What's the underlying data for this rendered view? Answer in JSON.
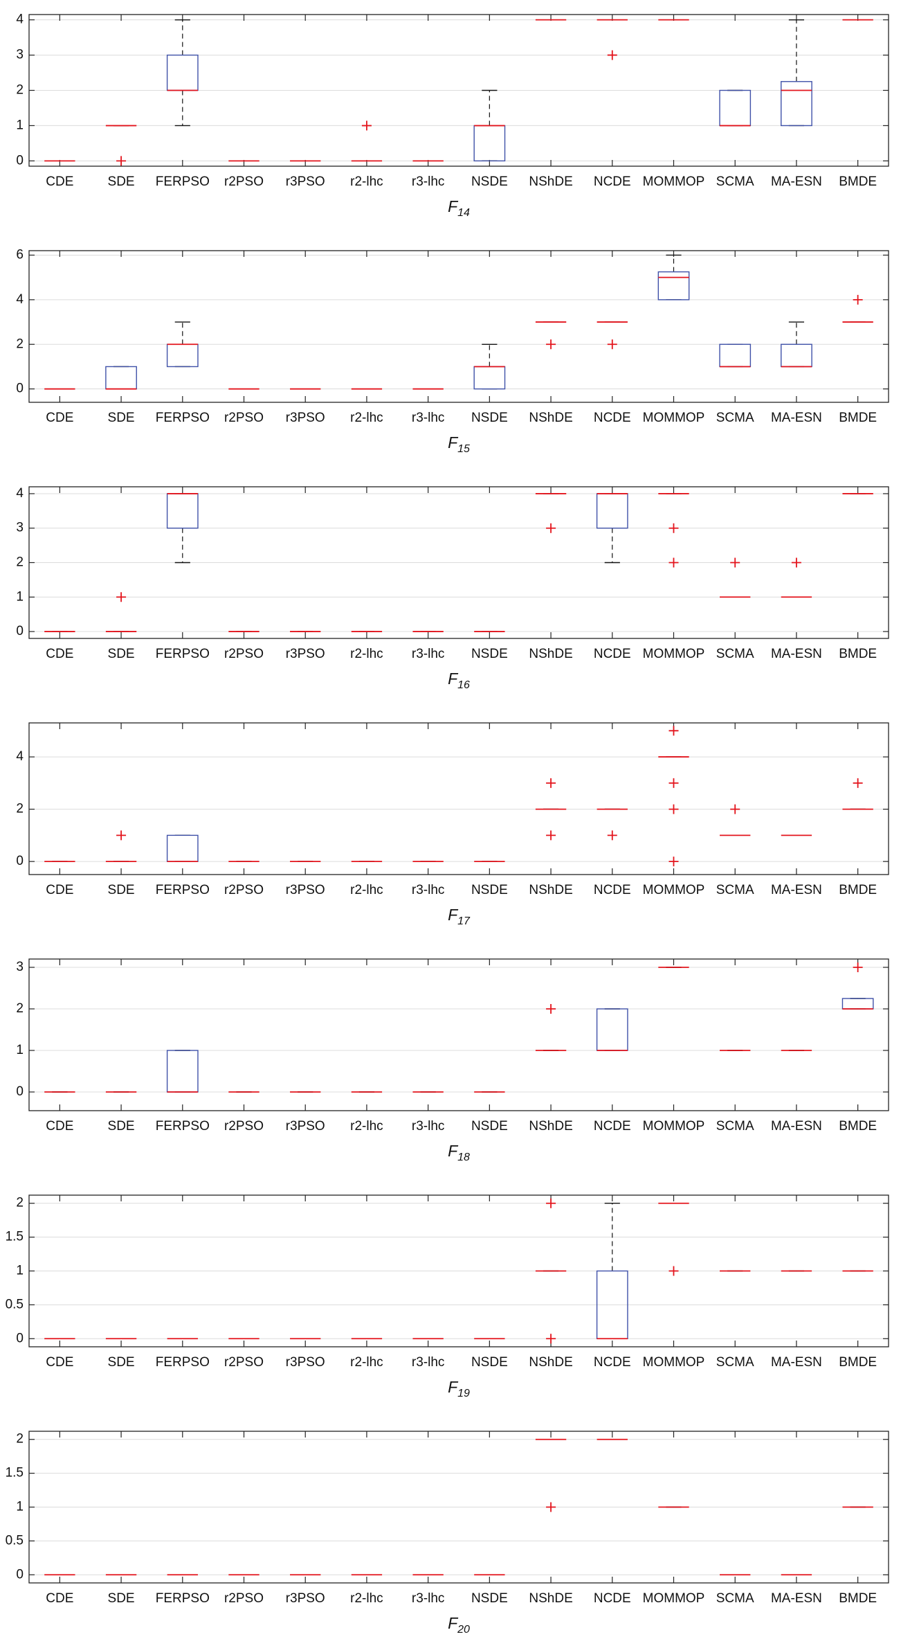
{
  "chart_data": [
    {
      "type": "box",
      "xlabel": "F",
      "xlabel_sub": "14",
      "ylim": [
        -0.15,
        4.15
      ],
      "yticks": [
        0,
        1,
        2,
        3,
        4
      ],
      "grid": true,
      "box_color": "#3f51a8",
      "median_color": "#e3141c",
      "categories": [
        "CDE",
        "SDE",
        "FERPSO",
        "r2PSO",
        "r3PSO",
        "r2-lhc",
        "r3-lhc",
        "NSDE",
        "NShDE",
        "NCDE",
        "MOMMOP",
        "SCMA",
        "MA-ESN",
        "BMDE"
      ],
      "boxes": [
        {
          "lo": 0,
          "q1": 0,
          "med": 0,
          "q3": 0,
          "hi": 0
        },
        {
          "lo": 1,
          "q1": 1,
          "med": 1,
          "q3": 1,
          "hi": 1,
          "out": [
            0
          ]
        },
        {
          "lo": 1,
          "q1": 2,
          "med": 2,
          "q3": 3,
          "hi": 4
        },
        {
          "lo": 0,
          "q1": 0,
          "med": 0,
          "q3": 0,
          "hi": 0
        },
        {
          "lo": 0,
          "q1": 0,
          "med": 0,
          "q3": 0,
          "hi": 0
        },
        {
          "lo": 0,
          "q1": 0,
          "med": 0,
          "q3": 0,
          "hi": 0,
          "out": [
            1
          ]
        },
        {
          "lo": 0,
          "q1": 0,
          "med": 0,
          "q3": 0,
          "hi": 0
        },
        {
          "lo": 0,
          "q1": 0,
          "med": 1,
          "q3": 1,
          "hi": 2
        },
        {
          "lo": 4,
          "q1": 4,
          "med": 4,
          "q3": 4,
          "hi": 4
        },
        {
          "lo": 4,
          "q1": 4,
          "med": 4,
          "q3": 4,
          "hi": 4,
          "out": [
            3
          ]
        },
        {
          "lo": 4,
          "q1": 4,
          "med": 4,
          "q3": 4,
          "hi": 4
        },
        {
          "lo": 1,
          "q1": 1,
          "med": 1,
          "q3": 2,
          "hi": 2
        },
        {
          "lo": 1,
          "q1": 1,
          "med": 2,
          "q3": 2.25,
          "hi": 4
        },
        {
          "lo": 4,
          "q1": 4,
          "med": 4,
          "q3": 4,
          "hi": 4
        }
      ]
    },
    {
      "type": "box",
      "xlabel": "F",
      "xlabel_sub": "15",
      "ylim": [
        -0.6,
        6.2
      ],
      "yticks": [
        0,
        2,
        4,
        6
      ],
      "grid": true,
      "box_color": "#3f51a8",
      "median_color": "#e3141c",
      "categories": [
        "CDE",
        "SDE",
        "FERPSO",
        "r2PSO",
        "r3PSO",
        "r2-lhc",
        "r3-lhc",
        "NSDE",
        "NShDE",
        "NCDE",
        "MOMMOP",
        "SCMA",
        "MA-ESN",
        "BMDE"
      ],
      "boxes": [
        {
          "lo": 0,
          "q1": 0,
          "med": 0,
          "q3": 0,
          "hi": 0
        },
        {
          "lo": 0,
          "q1": 0,
          "med": 0,
          "q3": 1,
          "hi": 1
        },
        {
          "lo": 1,
          "q1": 1,
          "med": 2,
          "q3": 2,
          "hi": 3
        },
        {
          "lo": 0,
          "q1": 0,
          "med": 0,
          "q3": 0,
          "hi": 0
        },
        {
          "lo": 0,
          "q1": 0,
          "med": 0,
          "q3": 0,
          "hi": 0
        },
        {
          "lo": 0,
          "q1": 0,
          "med": 0,
          "q3": 0,
          "hi": 0
        },
        {
          "lo": 0,
          "q1": 0,
          "med": 0,
          "q3": 0,
          "hi": 0
        },
        {
          "lo": 0,
          "q1": 0,
          "med": 1,
          "q3": 1,
          "hi": 2
        },
        {
          "lo": 3,
          "q1": 3,
          "med": 3,
          "q3": 3,
          "hi": 3,
          "out": [
            2
          ]
        },
        {
          "lo": 3,
          "q1": 3,
          "med": 3,
          "q3": 3,
          "hi": 3,
          "out": [
            2
          ]
        },
        {
          "lo": 4,
          "q1": 4,
          "med": 5,
          "q3": 5.25,
          "hi": 6
        },
        {
          "lo": 1,
          "q1": 1,
          "med": 1,
          "q3": 2,
          "hi": 2
        },
        {
          "lo": 1,
          "q1": 1,
          "med": 1,
          "q3": 2,
          "hi": 3
        },
        {
          "lo": 3,
          "q1": 3,
          "med": 3,
          "q3": 3,
          "hi": 3,
          "out": [
            4
          ]
        }
      ]
    },
    {
      "type": "box",
      "xlabel": "F",
      "xlabel_sub": "16",
      "ylim": [
        -0.2,
        4.2
      ],
      "yticks": [
        0,
        1,
        2,
        3,
        4
      ],
      "grid": true,
      "box_color": "#3f51a8",
      "median_color": "#e3141c",
      "categories": [
        "CDE",
        "SDE",
        "FERPSO",
        "r2PSO",
        "r3PSO",
        "r2-lhc",
        "r3-lhc",
        "NSDE",
        "NShDE",
        "NCDE",
        "MOMMOP",
        "SCMA",
        "MA-ESN",
        "BMDE"
      ],
      "boxes": [
        {
          "lo": 0,
          "q1": 0,
          "med": 0,
          "q3": 0,
          "hi": 0
        },
        {
          "lo": 0,
          "q1": 0,
          "med": 0,
          "q3": 0,
          "hi": 0,
          "out": [
            1
          ]
        },
        {
          "lo": 2,
          "q1": 3,
          "med": 4,
          "q3": 4,
          "hi": 4
        },
        {
          "lo": 0,
          "q1": 0,
          "med": 0,
          "q3": 0,
          "hi": 0
        },
        {
          "lo": 0,
          "q1": 0,
          "med": 0,
          "q3": 0,
          "hi": 0
        },
        {
          "lo": 0,
          "q1": 0,
          "med": 0,
          "q3": 0,
          "hi": 0
        },
        {
          "lo": 0,
          "q1": 0,
          "med": 0,
          "q3": 0,
          "hi": 0
        },
        {
          "lo": 0,
          "q1": 0,
          "med": 0,
          "q3": 0,
          "hi": 0
        },
        {
          "lo": 4,
          "q1": 4,
          "med": 4,
          "q3": 4,
          "hi": 4,
          "out": [
            3
          ]
        },
        {
          "lo": 2,
          "q1": 3,
          "med": 4,
          "q3": 4,
          "hi": 4
        },
        {
          "lo": 4,
          "q1": 4,
          "med": 4,
          "q3": 4,
          "hi": 4,
          "out": [
            3,
            2
          ]
        },
        {
          "lo": 1,
          "q1": 1,
          "med": 1,
          "q3": 1,
          "hi": 1,
          "out": [
            2
          ]
        },
        {
          "lo": 1,
          "q1": 1,
          "med": 1,
          "q3": 1,
          "hi": 1,
          "out": [
            2
          ]
        },
        {
          "lo": 4,
          "q1": 4,
          "med": 4,
          "q3": 4,
          "hi": 4
        }
      ]
    },
    {
      "type": "box",
      "xlabel": "F",
      "xlabel_sub": "17",
      "ylim": [
        -0.5,
        5.3
      ],
      "yticks": [
        0,
        2,
        4
      ],
      "grid": true,
      "box_color": "#3f51a8",
      "median_color": "#e3141c",
      "categories": [
        "CDE",
        "SDE",
        "FERPSO",
        "r2PSO",
        "r3PSO",
        "r2-lhc",
        "r3-lhc",
        "NSDE",
        "NShDE",
        "NCDE",
        "MOMMOP",
        "SCMA",
        "MA-ESN",
        "BMDE"
      ],
      "boxes": [
        {
          "lo": 0,
          "q1": 0,
          "med": 0,
          "q3": 0,
          "hi": 0
        },
        {
          "lo": 0,
          "q1": 0,
          "med": 0,
          "q3": 0,
          "hi": 0,
          "out": [
            1
          ]
        },
        {
          "lo": 0,
          "q1": 0,
          "med": 0,
          "q3": 1,
          "hi": 1
        },
        {
          "lo": 0,
          "q1": 0,
          "med": 0,
          "q3": 0,
          "hi": 0
        },
        {
          "lo": 0,
          "q1": 0,
          "med": 0,
          "q3": 0,
          "hi": 0
        },
        {
          "lo": 0,
          "q1": 0,
          "med": 0,
          "q3": 0,
          "hi": 0
        },
        {
          "lo": 0,
          "q1": 0,
          "med": 0,
          "q3": 0,
          "hi": 0
        },
        {
          "lo": 0,
          "q1": 0,
          "med": 0,
          "q3": 0,
          "hi": 0
        },
        {
          "lo": 2,
          "q1": 2,
          "med": 2,
          "q3": 2,
          "hi": 2,
          "out": [
            3,
            1
          ]
        },
        {
          "lo": 2,
          "q1": 2,
          "med": 2,
          "q3": 2,
          "hi": 2,
          "out": [
            1
          ]
        },
        {
          "lo": 4,
          "q1": 4,
          "med": 4,
          "q3": 4,
          "hi": 4,
          "out": [
            5,
            3,
            2,
            0
          ]
        },
        {
          "lo": 1,
          "q1": 1,
          "med": 1,
          "q3": 1,
          "hi": 1,
          "out": [
            2
          ]
        },
        {
          "lo": 1,
          "q1": 1,
          "med": 1,
          "q3": 1,
          "hi": 1
        },
        {
          "lo": 2,
          "q1": 2,
          "med": 2,
          "q3": 2,
          "hi": 2,
          "out": [
            3
          ]
        }
      ]
    },
    {
      "type": "box",
      "xlabel": "F",
      "xlabel_sub": "18",
      "ylim": [
        -0.45,
        3.2
      ],
      "yticks": [
        0,
        1,
        2,
        3
      ],
      "grid": true,
      "box_color": "#3f51a8",
      "median_color": "#e3141c",
      "categories": [
        "CDE",
        "SDE",
        "FERPSO",
        "r2PSO",
        "r3PSO",
        "r2-lhc",
        "r3-lhc",
        "NSDE",
        "NShDE",
        "NCDE",
        "MOMMOP",
        "SCMA",
        "MA-ESN",
        "BMDE"
      ],
      "boxes": [
        {
          "lo": 0,
          "q1": 0,
          "med": 0,
          "q3": 0,
          "hi": 0
        },
        {
          "lo": 0,
          "q1": 0,
          "med": 0,
          "q3": 0,
          "hi": 0
        },
        {
          "lo": 0,
          "q1": 0,
          "med": 0,
          "q3": 1,
          "hi": 1
        },
        {
          "lo": 0,
          "q1": 0,
          "med": 0,
          "q3": 0,
          "hi": 0
        },
        {
          "lo": 0,
          "q1": 0,
          "med": 0,
          "q3": 0,
          "hi": 0
        },
        {
          "lo": 0,
          "q1": 0,
          "med": 0,
          "q3": 0,
          "hi": 0
        },
        {
          "lo": 0,
          "q1": 0,
          "med": 0,
          "q3": 0,
          "hi": 0
        },
        {
          "lo": 0,
          "q1": 0,
          "med": 0,
          "q3": 0,
          "hi": 0
        },
        {
          "lo": 1,
          "q1": 1,
          "med": 1,
          "q3": 1,
          "hi": 1,
          "out": [
            2
          ]
        },
        {
          "lo": 1,
          "q1": 1,
          "med": 1,
          "q3": 2,
          "hi": 2
        },
        {
          "lo": 3,
          "q1": 3,
          "med": 3,
          "q3": 3,
          "hi": 3
        },
        {
          "lo": 1,
          "q1": 1,
          "med": 1,
          "q3": 1,
          "hi": 1
        },
        {
          "lo": 1,
          "q1": 1,
          "med": 1,
          "q3": 1,
          "hi": 1
        },
        {
          "lo": 2,
          "q1": 2,
          "med": 2,
          "q3": 2.25,
          "hi": 2.25,
          "out": [
            3
          ]
        }
      ]
    },
    {
      "type": "box",
      "xlabel": "F",
      "xlabel_sub": "19",
      "ylim": [
        -0.12,
        2.12
      ],
      "yticks": [
        0,
        0.5,
        1,
        1.5,
        2
      ],
      "grid": true,
      "box_color": "#3f51a8",
      "median_color": "#e3141c",
      "categories": [
        "CDE",
        "SDE",
        "FERPSO",
        "r2PSO",
        "r3PSO",
        "r2-lhc",
        "r3-lhc",
        "NSDE",
        "NShDE",
        "NCDE",
        "MOMMOP",
        "SCMA",
        "MA-ESN",
        "BMDE"
      ],
      "boxes": [
        {
          "lo": 0,
          "q1": 0,
          "med": 0,
          "q3": 0,
          "hi": 0
        },
        {
          "lo": 0,
          "q1": 0,
          "med": 0,
          "q3": 0,
          "hi": 0
        },
        {
          "lo": 0,
          "q1": 0,
          "med": 0,
          "q3": 0,
          "hi": 0
        },
        {
          "lo": 0,
          "q1": 0,
          "med": 0,
          "q3": 0,
          "hi": 0
        },
        {
          "lo": 0,
          "q1": 0,
          "med": 0,
          "q3": 0,
          "hi": 0
        },
        {
          "lo": 0,
          "q1": 0,
          "med": 0,
          "q3": 0,
          "hi": 0
        },
        {
          "lo": 0,
          "q1": 0,
          "med": 0,
          "q3": 0,
          "hi": 0
        },
        {
          "lo": 0,
          "q1": 0,
          "med": 0,
          "q3": 0,
          "hi": 0
        },
        {
          "lo": 1,
          "q1": 1,
          "med": 1,
          "q3": 1,
          "hi": 1,
          "out": [
            2,
            0
          ]
        },
        {
          "lo": 0,
          "q1": 0,
          "med": 0,
          "q3": 1,
          "hi": 2
        },
        {
          "lo": 2,
          "q1": 2,
          "med": 2,
          "q3": 2,
          "hi": 2,
          "out": [
            1
          ]
        },
        {
          "lo": 1,
          "q1": 1,
          "med": 1,
          "q3": 1,
          "hi": 1
        },
        {
          "lo": 1,
          "q1": 1,
          "med": 1,
          "q3": 1,
          "hi": 1
        },
        {
          "lo": 1,
          "q1": 1,
          "med": 1,
          "q3": 1,
          "hi": 1
        }
      ]
    },
    {
      "type": "box",
      "xlabel": "F",
      "xlabel_sub": "20",
      "ylim": [
        -0.12,
        2.12
      ],
      "yticks": [
        0,
        0.5,
        1,
        1.5,
        2
      ],
      "grid": true,
      "box_color": "#3f51a8",
      "median_color": "#e3141c",
      "categories": [
        "CDE",
        "SDE",
        "FERPSO",
        "r2PSO",
        "r3PSO",
        "r2-lhc",
        "r3-lhc",
        "NSDE",
        "NShDE",
        "NCDE",
        "MOMMOP",
        "SCMA",
        "MA-ESN",
        "BMDE"
      ],
      "boxes": [
        {
          "lo": 0,
          "q1": 0,
          "med": 0,
          "q3": 0,
          "hi": 0
        },
        {
          "lo": 0,
          "q1": 0,
          "med": 0,
          "q3": 0,
          "hi": 0
        },
        {
          "lo": 0,
          "q1": 0,
          "med": 0,
          "q3": 0,
          "hi": 0
        },
        {
          "lo": 0,
          "q1": 0,
          "med": 0,
          "q3": 0,
          "hi": 0
        },
        {
          "lo": 0,
          "q1": 0,
          "med": 0,
          "q3": 0,
          "hi": 0
        },
        {
          "lo": 0,
          "q1": 0,
          "med": 0,
          "q3": 0,
          "hi": 0
        },
        {
          "lo": 0,
          "q1": 0,
          "med": 0,
          "q3": 0,
          "hi": 0
        },
        {
          "lo": 0,
          "q1": 0,
          "med": 0,
          "q3": 0,
          "hi": 0
        },
        {
          "lo": 2,
          "q1": 2,
          "med": 2,
          "q3": 2,
          "hi": 2,
          "out": [
            1
          ]
        },
        {
          "lo": 2,
          "q1": 2,
          "med": 2,
          "q3": 2,
          "hi": 2
        },
        {
          "lo": 1,
          "q1": 1,
          "med": 1,
          "q3": 1,
          "hi": 1
        },
        {
          "lo": 0,
          "q1": 0,
          "med": 0,
          "q3": 0,
          "hi": 0
        },
        {
          "lo": 0,
          "q1": 0,
          "med": 0,
          "q3": 0,
          "hi": 0
        },
        {
          "lo": 1,
          "q1": 1,
          "med": 1,
          "q3": 1,
          "hi": 1
        }
      ]
    }
  ]
}
